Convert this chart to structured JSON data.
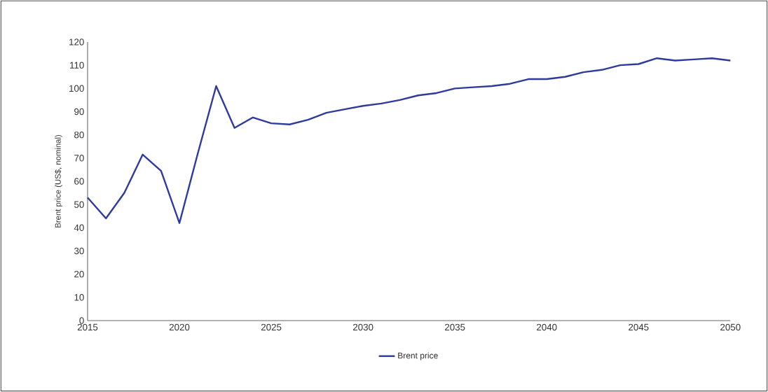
{
  "chart_data": {
    "type": "line",
    "ylabel": "Brent price (US$, nominal)",
    "x": [
      2015,
      2016,
      2017,
      2018,
      2019,
      2020,
      2021,
      2022,
      2023,
      2024,
      2025,
      2026,
      2027,
      2028,
      2029,
      2030,
      2031,
      2032,
      2033,
      2034,
      2035,
      2036,
      2037,
      2038,
      2039,
      2040,
      2041,
      2042,
      2043,
      2044,
      2045,
      2046,
      2047,
      2048,
      2049,
      2050
    ],
    "series": [
      {
        "name": "Brent price",
        "color": "#2e3a9e",
        "values": [
          53,
          44,
          55,
          71.5,
          64.5,
          42,
          72,
          101,
          83,
          87.5,
          85,
          84.5,
          86.5,
          89.5,
          91,
          92.5,
          93.5,
          95,
          97,
          98,
          100,
          100.5,
          101,
          102,
          104,
          104,
          105,
          107,
          108,
          110,
          110.5,
          113,
          112,
          112.5,
          113,
          112
        ]
      }
    ],
    "xlim": [
      2015,
      2050
    ],
    "xticks": [
      2015,
      2020,
      2025,
      2030,
      2035,
      2040,
      2045,
      2050
    ],
    "ylim": [
      0,
      120
    ],
    "yticks": [
      0,
      10,
      20,
      30,
      40,
      50,
      60,
      70,
      80,
      90,
      100,
      110,
      120
    ],
    "grid": false,
    "legend": "bottom",
    "marker": "none",
    "line_style": "solid"
  }
}
